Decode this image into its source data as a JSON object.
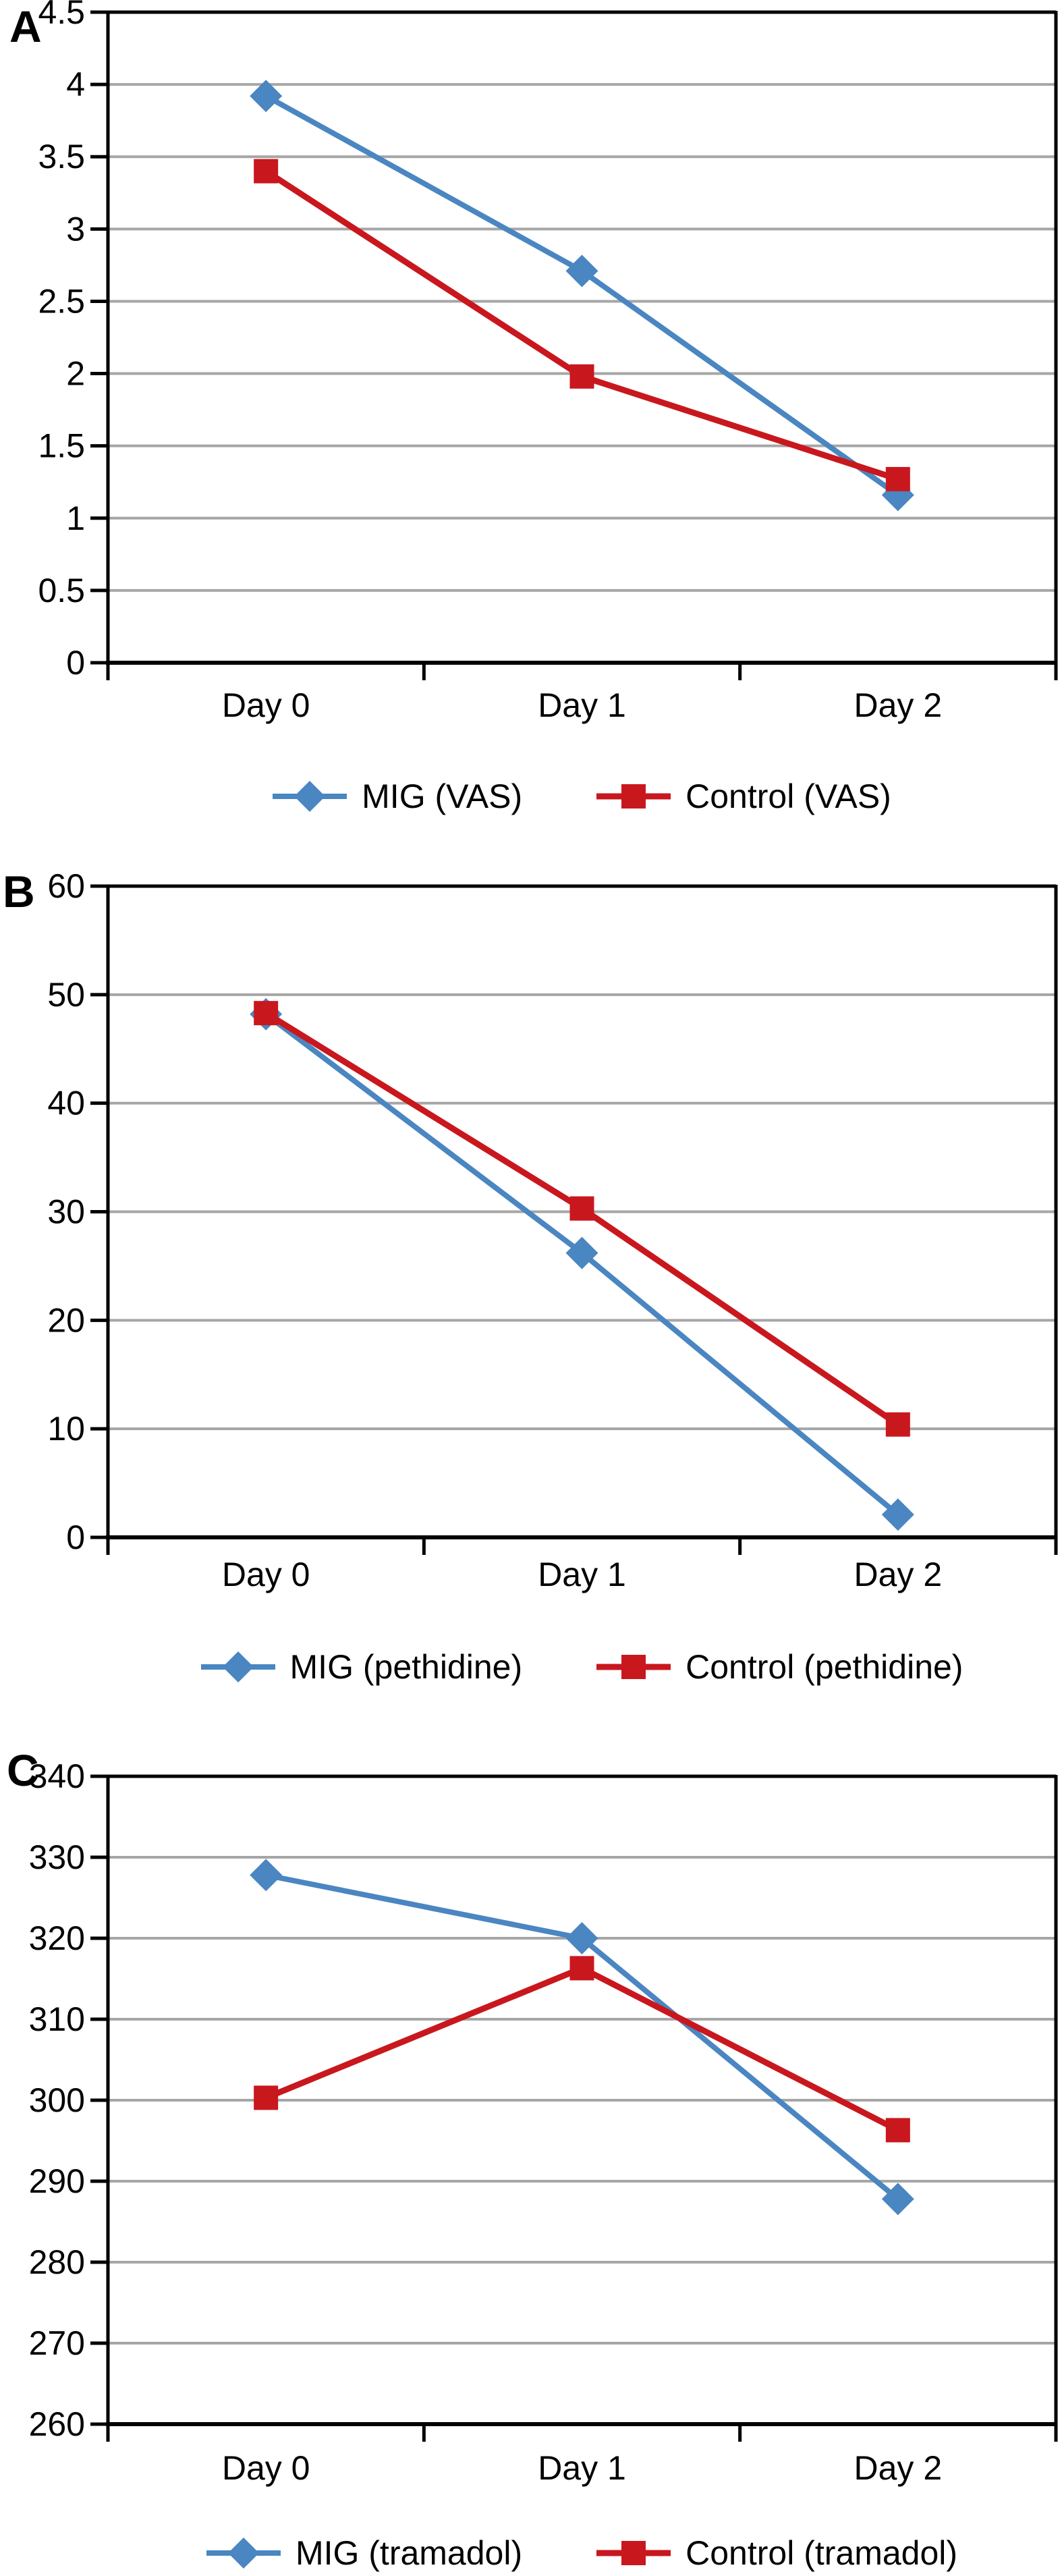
{
  "figure": {
    "panels": [
      {
        "letter": "A"
      },
      {
        "letter": "B"
      },
      {
        "letter": "C"
      }
    ],
    "colors": {
      "gridline": "#a6a6a6",
      "axis": "#000000",
      "mig_blue": "#4a86c1",
      "control_red": "#c9171e"
    }
  },
  "chart_data": [
    {
      "type": "line",
      "panel": "A",
      "title": "",
      "xlabel": "",
      "ylabel": "",
      "categories": [
        "Day 0",
        "Day 1",
        "Day 2"
      ],
      "series": [
        {
          "name": "MIG (VAS)",
          "color": "#4a86c1",
          "marker": "diamond",
          "values": [
            3.92,
            2.71,
            1.16
          ]
        },
        {
          "name": "Control (VAS)",
          "color": "#c9171e",
          "marker": "square",
          "values": [
            3.4,
            1.98,
            1.27
          ]
        }
      ],
      "ylim": [
        0,
        4.5
      ],
      "ytick_step": 0.5,
      "grid": true,
      "legend_position": "bottom"
    },
    {
      "type": "line",
      "panel": "B",
      "title": "",
      "xlabel": "",
      "ylabel": "",
      "categories": [
        "Day 0",
        "Day 1",
        "Day 2"
      ],
      "series": [
        {
          "name": "MIG (pethidine)",
          "color": "#4a86c1",
          "marker": "diamond",
          "values": [
            48.2,
            26.2,
            2.1
          ]
        },
        {
          "name": "Control (pethidine)",
          "color": "#c9171e",
          "marker": "square",
          "values": [
            48.3,
            30.3,
            10.4
          ]
        }
      ],
      "ylim": [
        0,
        60
      ],
      "ytick_step": 10,
      "grid": true,
      "legend_position": "bottom"
    },
    {
      "type": "line",
      "panel": "C",
      "title": "",
      "xlabel": "",
      "ylabel": "",
      "categories": [
        "Day 0",
        "Day 1",
        "Day 2"
      ],
      "series": [
        {
          "name": "MIG (tramadol)",
          "color": "#4a86c1",
          "marker": "diamond",
          "values": [
            327.8,
            320,
            287.8
          ]
        },
        {
          "name": "Control (tramadol)",
          "color": "#c9171e",
          "marker": "square",
          "values": [
            300.3,
            316.3,
            296.3
          ]
        }
      ],
      "ylim": [
        260,
        340
      ],
      "ytick_step": 10,
      "grid": true,
      "legend_position": "bottom"
    }
  ]
}
